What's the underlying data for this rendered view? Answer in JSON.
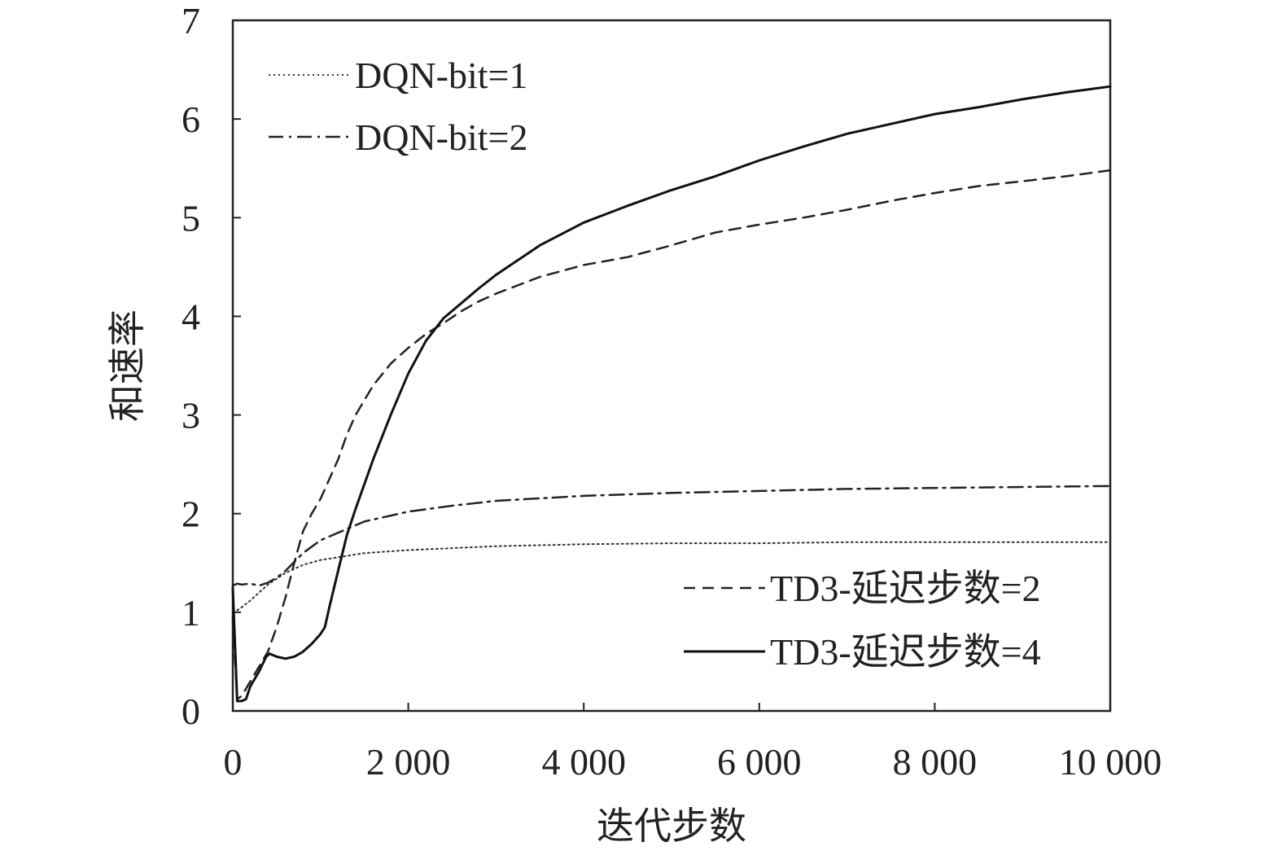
{
  "chart_data": {
    "type": "line",
    "title": "",
    "xlabel": "迭代步数",
    "ylabel": "和速率",
    "xlim": [
      0,
      10000
    ],
    "ylim": [
      0,
      7
    ],
    "x_ticks": [
      0,
      2000,
      4000,
      6000,
      8000,
      10000
    ],
    "x_tick_labels": [
      "0",
      "2 000",
      "4 000",
      "6 000",
      "8 000",
      "10 000"
    ],
    "y_ticks": [
      0,
      1,
      2,
      3,
      4,
      5,
      6,
      7
    ],
    "y_tick_labels": [
      "0",
      "1",
      "2",
      "3",
      "4",
      "5",
      "6",
      "7"
    ],
    "grid": false,
    "legend": [
      {
        "position": "top-left",
        "entries": [
          "DQN-bit=1",
          "DQN-bit=2"
        ]
      },
      {
        "position": "bottom-right",
        "entries": [
          "TD3-延迟步数=2",
          "TD3-延迟步数=4"
        ]
      }
    ],
    "series": [
      {
        "name": "DQN-bit=1",
        "style": "dotted",
        "color": "#333333",
        "x": [
          0,
          50,
          100,
          200,
          300,
          400,
          600,
          800,
          1000,
          1500,
          2000,
          3000,
          4000,
          5000,
          6000,
          7000,
          8000,
          9000,
          10000
        ],
        "y": [
          1.0,
          1.02,
          1.05,
          1.12,
          1.2,
          1.28,
          1.4,
          1.48,
          1.53,
          1.6,
          1.63,
          1.67,
          1.69,
          1.7,
          1.7,
          1.71,
          1.71,
          1.71,
          1.71
        ]
      },
      {
        "name": "DQN-bit=2",
        "style": "dash-dot",
        "color": "#222222",
        "x": [
          0,
          50,
          100,
          200,
          300,
          400,
          500,
          600,
          800,
          1000,
          1500,
          2000,
          2500,
          3000,
          4000,
          5000,
          6000,
          7000,
          8000,
          9000,
          10000
        ],
        "y": [
          1.27,
          1.29,
          1.28,
          1.29,
          1.27,
          1.3,
          1.35,
          1.42,
          1.6,
          1.73,
          1.92,
          2.02,
          2.08,
          2.13,
          2.18,
          2.21,
          2.23,
          2.25,
          2.26,
          2.27,
          2.28
        ]
      },
      {
        "name": "TD3-延迟步数=2",
        "style": "dashed",
        "color": "#222222",
        "x": [
          0,
          50,
          100,
          200,
          300,
          400,
          500,
          600,
          700,
          800,
          900,
          1000,
          1100,
          1200,
          1300,
          1400,
          1500,
          1600,
          1800,
          2000,
          2200,
          2400,
          2600,
          2800,
          3000,
          3500,
          4000,
          4500,
          5000,
          5500,
          6000,
          6500,
          7000,
          7500,
          8000,
          8500,
          9000,
          9500,
          10000
        ],
        "y": [
          0.95,
          0.12,
          0.15,
          0.3,
          0.45,
          0.6,
          0.85,
          1.15,
          1.5,
          1.82,
          2.0,
          2.15,
          2.35,
          2.55,
          2.8,
          3.0,
          3.15,
          3.3,
          3.52,
          3.68,
          3.82,
          3.93,
          4.05,
          4.15,
          4.23,
          4.4,
          4.52,
          4.6,
          4.72,
          4.85,
          4.93,
          5.0,
          5.08,
          5.17,
          5.25,
          5.32,
          5.37,
          5.42,
          5.48
        ]
      },
      {
        "name": "TD3-延迟步数=4",
        "style": "solid",
        "color": "#111111",
        "x": [
          0,
          50,
          100,
          150,
          200,
          300,
          380,
          420,
          500,
          600,
          700,
          800,
          900,
          1000,
          1050,
          1100,
          1200,
          1300,
          1400,
          1600,
          1800,
          2000,
          2200,
          2400,
          2600,
          2800,
          3000,
          3500,
          4000,
          4500,
          5000,
          5500,
          6000,
          6500,
          7000,
          7500,
          8000,
          8500,
          9000,
          9500,
          10000
        ],
        "y": [
          1.25,
          0.1,
          0.1,
          0.12,
          0.25,
          0.4,
          0.55,
          0.58,
          0.55,
          0.53,
          0.55,
          0.6,
          0.68,
          0.78,
          0.85,
          1.05,
          1.42,
          1.78,
          2.05,
          2.55,
          3.0,
          3.42,
          3.75,
          3.98,
          4.13,
          4.28,
          4.42,
          4.72,
          4.95,
          5.12,
          5.28,
          5.42,
          5.58,
          5.72,
          5.85,
          5.95,
          6.05,
          6.12,
          6.2,
          6.27,
          6.33
        ]
      }
    ]
  }
}
